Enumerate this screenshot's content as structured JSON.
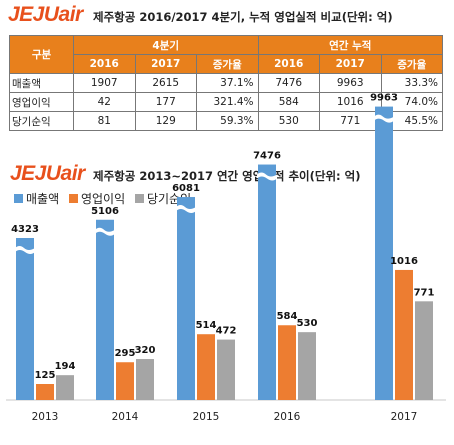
{
  "logo_text": "JEJUair",
  "table": {
    "title": "제주항공 2016/2017 4분기, 누적 영업실적 비교(단위: 억)",
    "header": {
      "group_label": "구분",
      "group1": "4분기",
      "group2": "연간 누적",
      "subheaders": [
        "2016",
        "2017",
        "증가율",
        "2016",
        "2017",
        "증가율"
      ]
    },
    "rows": [
      {
        "label": "매출액",
        "cells": [
          "1907",
          "2615",
          "37.1%",
          "7476",
          "9963",
          "33.3%"
        ]
      },
      {
        "label": "영업이익",
        "cells": [
          "42",
          "177",
          "321.4%",
          "584",
          "1016",
          "74.0%"
        ]
      },
      {
        "label": "당기순익",
        "cells": [
          "81",
          "129",
          "59.3%",
          "530",
          "771",
          "45.5%"
        ]
      }
    ]
  },
  "colors": {
    "logo": "#e8501c",
    "header_bg": "#e8801c",
    "series": [
      "#5b9bd5",
      "#ed7d31",
      "#a5a5a5"
    ]
  },
  "chart_data": {
    "type": "bar",
    "title": "제주항공 2013~2017 연간 영업실적 추이(단위: 억)",
    "categories": [
      "2013",
      "2014",
      "2015",
      "2016",
      "2017"
    ],
    "series": [
      {
        "name": "매출액",
        "values": [
          4323,
          5106,
          6081,
          7476,
          9963
        ]
      },
      {
        "name": "영업이익",
        "values": [
          125,
          295,
          514,
          584,
          1016
        ]
      },
      {
        "name": "당기순익",
        "values": [
          194,
          320,
          472,
          530,
          771
        ]
      }
    ],
    "axis_break": true,
    "legend_position": "top-left",
    "grid": false
  }
}
